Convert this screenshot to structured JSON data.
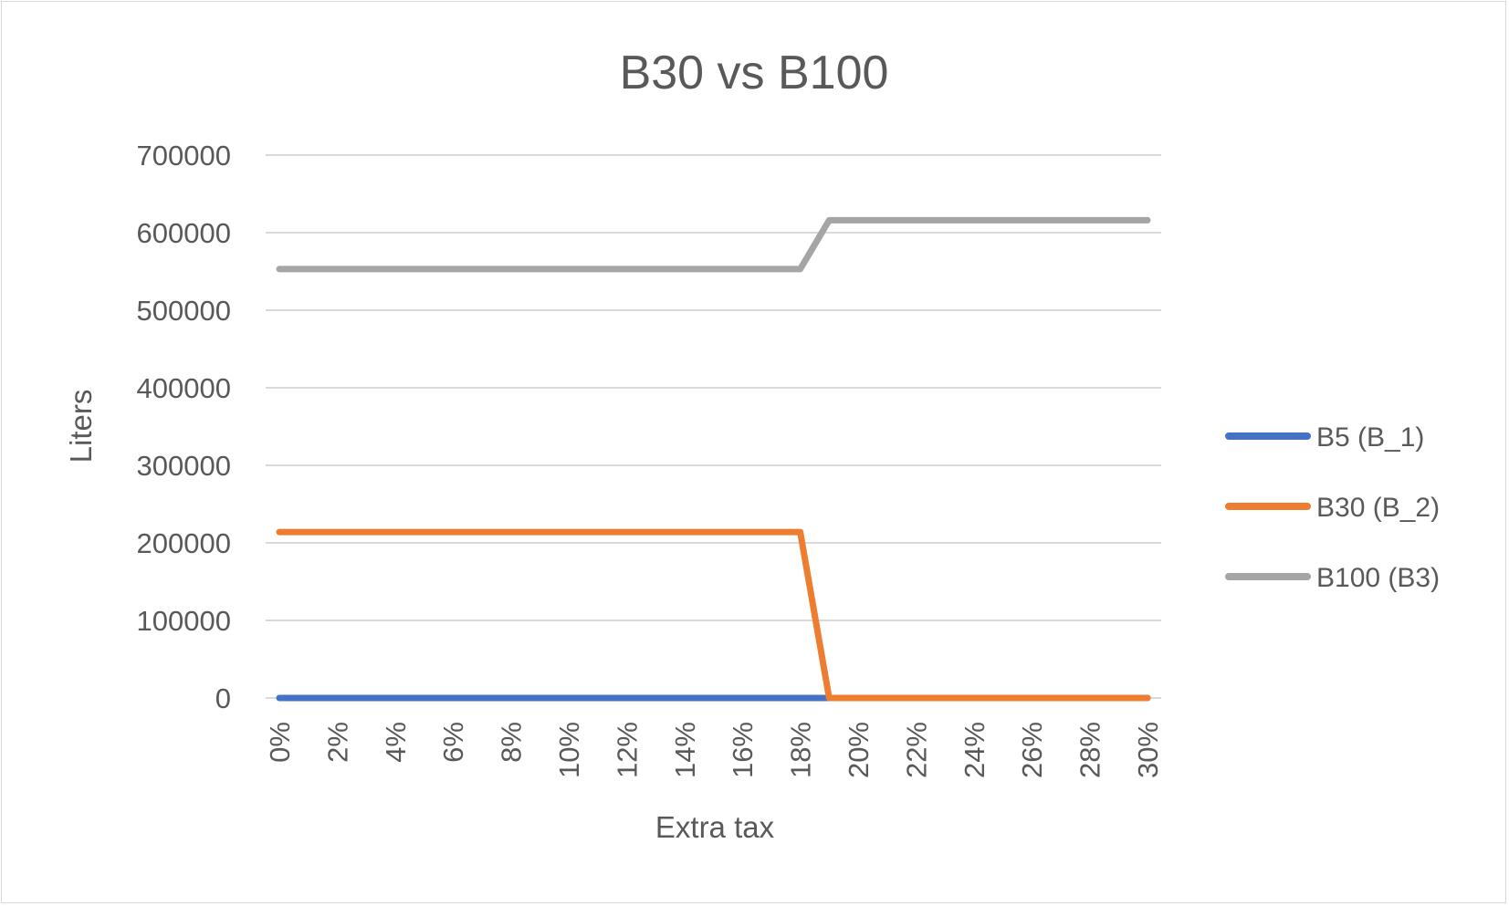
{
  "chart_data": {
    "type": "line",
    "title": "B30 vs B100",
    "xlabel": "Extra tax",
    "ylabel": "Liters",
    "ylim": [
      0,
      700000
    ],
    "yticks": [
      0,
      100000,
      200000,
      300000,
      400000,
      500000,
      600000,
      700000
    ],
    "ytick_labels": [
      "0",
      "100000",
      "200000",
      "300000",
      "400000",
      "500000",
      "600000",
      "700000"
    ],
    "x": [
      "0%",
      "1%",
      "2%",
      "3%",
      "4%",
      "5%",
      "6%",
      "7%",
      "8%",
      "9%",
      "10%",
      "11%",
      "12%",
      "13%",
      "14%",
      "15%",
      "16%",
      "17%",
      "18%",
      "19%",
      "20%",
      "21%",
      "22%",
      "23%",
      "24%",
      "25%",
      "26%",
      "27%",
      "28%",
      "29%",
      "30%"
    ],
    "xtick_labels": [
      "0%",
      "2%",
      "4%",
      "6%",
      "8%",
      "10%",
      "12%",
      "14%",
      "16%",
      "18%",
      "20%",
      "22%",
      "24%",
      "26%",
      "28%",
      "30%"
    ],
    "grid": "horizontal",
    "legend_position": "right",
    "series": [
      {
        "name": "B5 (B_1)",
        "color": "#4472C4",
        "values": [
          0,
          0,
          0,
          0,
          0,
          0,
          0,
          0,
          0,
          0,
          0,
          0,
          0,
          0,
          0,
          0,
          0,
          0,
          0,
          0,
          0,
          0,
          0,
          0,
          0,
          0,
          0,
          0,
          0,
          0,
          0
        ]
      },
      {
        "name": "B30 (B_2)",
        "color": "#ED7D31",
        "values": [
          214000,
          214000,
          214000,
          214000,
          214000,
          214000,
          214000,
          214000,
          214000,
          214000,
          214000,
          214000,
          214000,
          214000,
          214000,
          214000,
          214000,
          214000,
          214000,
          0,
          0,
          0,
          0,
          0,
          0,
          0,
          0,
          0,
          0,
          0,
          0
        ]
      },
      {
        "name": "B100 (B3)",
        "color": "#A5A5A5",
        "values": [
          553000,
          553000,
          553000,
          553000,
          553000,
          553000,
          553000,
          553000,
          553000,
          553000,
          553000,
          553000,
          553000,
          553000,
          553000,
          553000,
          553000,
          553000,
          553000,
          616000,
          616000,
          616000,
          616000,
          616000,
          616000,
          616000,
          616000,
          616000,
          616000,
          616000,
          616000
        ]
      }
    ]
  }
}
